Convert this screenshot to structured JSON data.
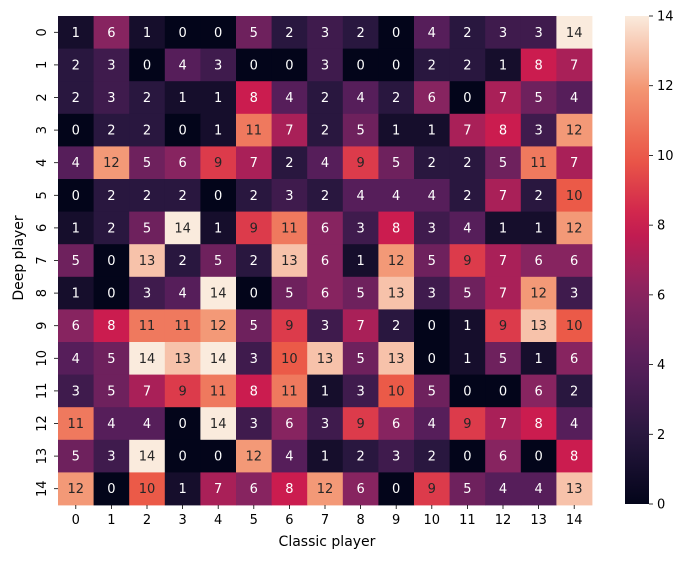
{
  "chart_data": {
    "type": "heatmap",
    "xlabel": "Classic player",
    "ylabel": "Deep player",
    "x_categories": [
      "0",
      "1",
      "2",
      "3",
      "4",
      "5",
      "6",
      "7",
      "8",
      "9",
      "10",
      "11",
      "12",
      "13",
      "14"
    ],
    "y_categories": [
      "0",
      "1",
      "2",
      "3",
      "4",
      "5",
      "6",
      "7",
      "8",
      "9",
      "10",
      "11",
      "12",
      "13",
      "14"
    ],
    "values": [
      [
        1,
        6,
        1,
        0,
        0,
        5,
        2,
        3,
        2,
        0,
        4,
        2,
        3,
        3,
        14
      ],
      [
        2,
        3,
        0,
        4,
        3,
        0,
        0,
        3,
        0,
        0,
        2,
        2,
        1,
        8,
        7
      ],
      [
        2,
        3,
        2,
        1,
        1,
        8,
        4,
        2,
        4,
        2,
        6,
        0,
        7,
        5,
        4
      ],
      [
        0,
        2,
        2,
        0,
        1,
        11,
        7,
        2,
        5,
        1,
        1,
        7,
        8,
        3,
        12
      ],
      [
        4,
        12,
        5,
        6,
        9,
        7,
        2,
        4,
        9,
        5,
        2,
        2,
        5,
        11,
        7
      ],
      [
        0,
        2,
        2,
        2,
        0,
        2,
        3,
        2,
        4,
        4,
        4,
        2,
        7,
        2,
        10
      ],
      [
        1,
        2,
        5,
        14,
        1,
        9,
        11,
        6,
        3,
        8,
        3,
        4,
        1,
        1,
        12
      ],
      [
        5,
        0,
        13,
        2,
        5,
        2,
        13,
        6,
        1,
        12,
        5,
        9,
        7,
        6,
        6
      ],
      [
        1,
        0,
        3,
        4,
        14,
        0,
        5,
        6,
        5,
        13,
        3,
        5,
        7,
        12,
        3
      ],
      [
        6,
        8,
        11,
        11,
        12,
        5,
        9,
        3,
        7,
        2,
        0,
        1,
        9,
        13,
        10
      ],
      [
        4,
        5,
        14,
        13,
        14,
        3,
        10,
        13,
        5,
        13,
        0,
        1,
        5,
        1,
        6
      ],
      [
        3,
        5,
        7,
        9,
        11,
        8,
        11,
        1,
        3,
        10,
        5,
        0,
        0,
        6,
        2
      ],
      [
        11,
        4,
        4,
        0,
        14,
        3,
        6,
        3,
        9,
        6,
        4,
        9,
        7,
        8,
        4
      ],
      [
        5,
        3,
        14,
        0,
        0,
        12,
        4,
        1,
        2,
        3,
        2,
        0,
        6,
        0,
        8
      ],
      [
        12,
        0,
        10,
        1,
        7,
        6,
        8,
        12,
        6,
        0,
        9,
        5,
        4,
        4,
        13
      ]
    ],
    "vmin": 0,
    "vmax": 14,
    "colormap": "rocket",
    "colorbar_ticks": [
      0,
      2,
      4,
      6,
      8,
      10,
      12,
      14
    ],
    "annotated": true,
    "grid": false
  }
}
